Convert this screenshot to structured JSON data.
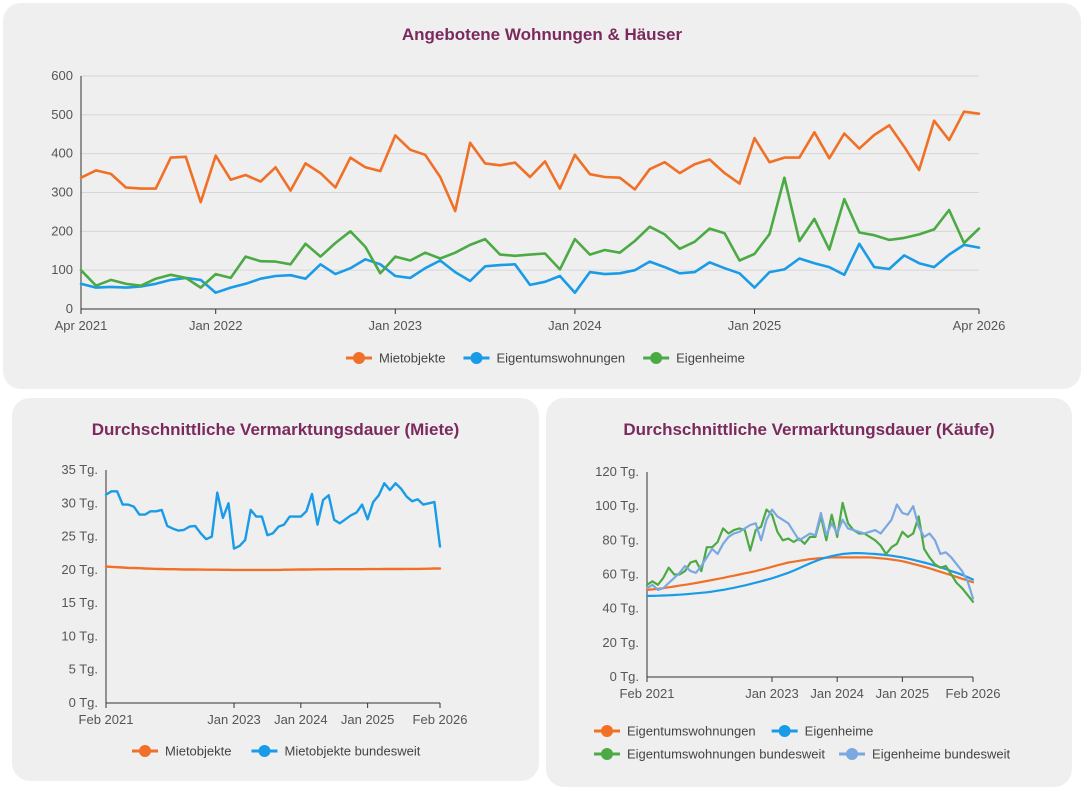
{
  "chart_data": [
    {
      "type": "line",
      "title": "Angebotene Wohnungen & Häuser",
      "x_start": "Apr 2021",
      "x_end": "Apr 2026",
      "ylim": [
        0,
        600
      ],
      "y_ticks": [
        "0",
        "100",
        "200",
        "300",
        "400",
        "500",
        "600"
      ],
      "x_ticks": [
        {
          "label": "Apr 2021",
          "month_index": 0
        },
        {
          "label": "Jan 2022",
          "month_index": 9
        },
        {
          "label": "Jan 2023",
          "month_index": 21
        },
        {
          "label": "Jan 2024",
          "month_index": 33
        },
        {
          "label": "Jan 2025",
          "month_index": 45
        },
        {
          "label": "Apr 2026",
          "month_index": 60
        }
      ],
      "legend_position": "bottom",
      "series": [
        {
          "name": "Mietobjekte",
          "color": "#f07028",
          "values": [
            338,
            357,
            348,
            313,
            310,
            310,
            390,
            392,
            275,
            395,
            333,
            345,
            328,
            365,
            305,
            375,
            350,
            313,
            390,
            365,
            355,
            447,
            410,
            397,
            340,
            252,
            428,
            375,
            370,
            377,
            340,
            380,
            310,
            397,
            347,
            340,
            338,
            308,
            360,
            378,
            350,
            373,
            385,
            350,
            323,
            440,
            378,
            390,
            390,
            455,
            388,
            452,
            413,
            448,
            473,
            418,
            358,
            485,
            435,
            508,
            503
          ]
        },
        {
          "name": "Eigentumswohnungen",
          "color": "#1a9be8",
          "values": [
            65,
            55,
            57,
            55,
            58,
            65,
            75,
            80,
            75,
            42,
            55,
            65,
            78,
            85,
            87,
            78,
            115,
            90,
            105,
            128,
            115,
            85,
            80,
            105,
            125,
            95,
            72,
            110,
            113,
            115,
            62,
            70,
            85,
            42,
            95,
            90,
            92,
            100,
            122,
            108,
            92,
            95,
            120,
            105,
            92,
            55,
            95,
            102,
            130,
            118,
            108,
            88,
            168,
            108,
            103,
            138,
            118,
            108,
            140,
            165,
            158
          ]
        },
        {
          "name": "Eigenheime",
          "color": "#4caa44",
          "values": [
            100,
            60,
            75,
            65,
            60,
            78,
            88,
            80,
            55,
            90,
            80,
            135,
            123,
            122,
            115,
            168,
            135,
            170,
            200,
            160,
            92,
            135,
            125,
            145,
            130,
            145,
            165,
            180,
            140,
            137,
            140,
            143,
            102,
            180,
            140,
            152,
            145,
            175,
            212,
            192,
            155,
            173,
            207,
            195,
            125,
            142,
            193,
            338,
            175,
            232,
            153,
            283,
            197,
            190,
            178,
            183,
            192,
            205,
            255,
            170,
            207
          ]
        }
      ]
    },
    {
      "type": "line",
      "title": "Durchschnittliche Vermarktungsdauer (Miete)",
      "x_start": "Feb 2021",
      "x_end": "Feb 2026",
      "ylim": [
        0,
        35
      ],
      "y_ticks": [
        "0 Tg.",
        "5 Tg.",
        "10 Tg.",
        "15 Tg.",
        "20 Tg.",
        "25 Tg.",
        "30 Tg.",
        "35 Tg."
      ],
      "x_ticks": [
        {
          "label": "Feb 2021",
          "month_index": 0
        },
        {
          "label": "Jan 2023",
          "month_index": 23
        },
        {
          "label": "Jan 2024",
          "month_index": 35
        },
        {
          "label": "Jan 2025",
          "month_index": 47
        },
        {
          "label": "Feb 2026",
          "month_index": 60
        }
      ],
      "legend_position": "bottom",
      "series": [
        {
          "name": "Mietobjekte",
          "color": "#f07028",
          "values": [
            20.5,
            20.45,
            20.4,
            20.35,
            20.3,
            20.28,
            20.25,
            20.2,
            20.18,
            20.15,
            20.13,
            20.1,
            20.1,
            20.08,
            20.06,
            20.05,
            20.05,
            20.04,
            20.03,
            20.02,
            20.02,
            20.01,
            20.01,
            20.0,
            20.0,
            20.0,
            20.0,
            20.0,
            20.0,
            20.0,
            20.0,
            20.0,
            20.02,
            20.03,
            20.04,
            20.05,
            20.06,
            20.07,
            20.08,
            20.08,
            20.09,
            20.1,
            20.1,
            20.1,
            20.1,
            20.1,
            20.1,
            20.11,
            20.12,
            20.12,
            20.13,
            20.13,
            20.13,
            20.13,
            20.14,
            20.15,
            20.15,
            20.16,
            20.18,
            20.2,
            20.2
          ]
        },
        {
          "name": "Mietobjekte bundesweit",
          "color": "#1a9be8",
          "values": [
            31.3,
            31.8,
            31.8,
            29.8,
            29.8,
            29.5,
            28.3,
            28.3,
            28.8,
            28.8,
            29.0,
            26.6,
            26.2,
            25.9,
            26.0,
            26.5,
            26.6,
            25.5,
            24.6,
            25.0,
            31.6,
            27.8,
            30.0,
            23.2,
            23.6,
            24.5,
            29.0,
            28.0,
            28.0,
            25.2,
            25.5,
            26.5,
            26.8,
            28.0,
            28.0,
            28.0,
            28.8,
            31.4,
            26.8,
            30.5,
            31.2,
            27.5,
            27.0,
            27.6,
            28.2,
            28.6,
            29.8,
            27.6,
            30.2,
            31.2,
            33.0,
            32.0,
            33.0,
            32.2,
            31.0,
            30.3,
            30.6,
            29.8,
            30.0,
            30.2,
            23.5
          ]
        }
      ]
    },
    {
      "type": "line",
      "title": "Durchschnittliche Vermarktungsdauer (Käufe)",
      "x_start": "Feb 2021",
      "x_end": "Feb 2026",
      "ylim": [
        0,
        120
      ],
      "y_ticks": [
        "0 Tg.",
        "20 Tg.",
        "40 Tg.",
        "60 Tg.",
        "80 Tg.",
        "100 Tg.",
        "120 Tg."
      ],
      "x_ticks": [
        {
          "label": "Feb 2021",
          "month_index": 0
        },
        {
          "label": "Jan 2023",
          "month_index": 23
        },
        {
          "label": "Jan 2024",
          "month_index": 35
        },
        {
          "label": "Jan 2025",
          "month_index": 47
        },
        {
          "label": "Feb 2026",
          "month_index": 60
        }
      ],
      "legend_position": "bottom",
      "series": [
        {
          "name": "Eigentumswohnungen",
          "color": "#f07028",
          "values": [
            51,
            51.3,
            51.6,
            52,
            52.5,
            53,
            53.5,
            54,
            54.5,
            55,
            55.6,
            56.2,
            56.8,
            57.4,
            58,
            58.7,
            59.3,
            60,
            60.7,
            61.3,
            62,
            62.8,
            63.6,
            64.5,
            65.4,
            66.2,
            67,
            67.5,
            68,
            68.5,
            69,
            69.3,
            69.6,
            69.8,
            70,
            70,
            70,
            70,
            70,
            70,
            70,
            70,
            69.8,
            69.5,
            69.2,
            68.8,
            68.3,
            67.8,
            67,
            66.2,
            65.4,
            64.5,
            63.6,
            62.6,
            61.6,
            60.6,
            59.6,
            58.6,
            57.5,
            56.5,
            55.5
          ]
        },
        {
          "name": "Eigenheime",
          "color": "#1a9be8",
          "values": [
            47.5,
            47.5,
            47.6,
            47.7,
            47.8,
            48,
            48.2,
            48.4,
            48.7,
            49,
            49.3,
            49.6,
            50,
            50.5,
            51,
            51.6,
            52.2,
            52.9,
            53.6,
            54.4,
            55.2,
            56,
            56.9,
            57.8,
            58.8,
            59.9,
            61,
            62.3,
            63.7,
            65.1,
            66.5,
            67.8,
            69,
            70,
            70.8,
            71.5,
            72,
            72.3,
            72.5,
            72.5,
            72.4,
            72.2,
            72,
            71.7,
            71.4,
            71,
            70.5,
            70,
            69.3,
            68.6,
            67.8,
            67,
            66.2,
            65.2,
            64.2,
            63.2,
            62,
            61,
            59.8,
            58.5,
            57
          ]
        },
        {
          "name": "Eigentumswohnungen bundesweit",
          "color": "#4caa44",
          "values": [
            54,
            56,
            54,
            58,
            64,
            60,
            60,
            62,
            67,
            68,
            62,
            76,
            76,
            79,
            87,
            84,
            86,
            87,
            86,
            74,
            86,
            88,
            98,
            95,
            85,
            80,
            81,
            79,
            81,
            78,
            82,
            82,
            94,
            80,
            95,
            82,
            102,
            90,
            86,
            84,
            84,
            82,
            80,
            77,
            72,
            76,
            78,
            85,
            82,
            84,
            94,
            75,
            70,
            66,
            64,
            65,
            60,
            55,
            52,
            48,
            44
          ]
        },
        {
          "name": "Eigenheime bundesweit",
          "color": "#7aa8e0",
          "values": [
            52,
            54,
            51,
            52,
            55,
            58,
            61,
            65,
            62,
            61,
            65,
            70,
            75,
            72,
            78,
            82,
            84,
            85,
            87,
            89,
            90,
            80,
            92,
            98,
            94,
            92,
            90,
            85,
            80,
            82,
            84,
            83,
            96,
            83,
            90,
            84,
            92,
            87,
            86,
            85,
            84,
            85,
            86,
            84,
            88,
            92,
            101,
            96,
            95,
            100,
            88,
            82,
            84,
            80,
            72,
            73,
            70,
            66,
            62,
            56,
            46
          ]
        }
      ]
    }
  ]
}
